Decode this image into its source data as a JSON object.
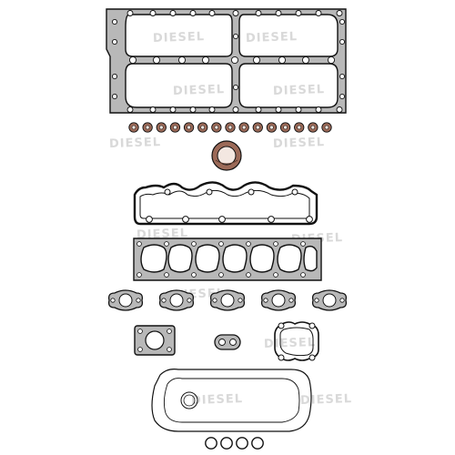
{
  "image": {
    "subject": "head gasket set",
    "colors": {
      "background": "#ffffff",
      "line": "#111111",
      "gasket_fill": "#b8b8b8",
      "seal_fill": "#9c6a58",
      "seal_center": "#f3e7e1",
      "watermark": "#d9d9d9"
    }
  },
  "watermark": {
    "text": "DIESEL"
  },
  "parts": {
    "valve_stem_seal_count": 15,
    "heat_shield_gasket_count": 5,
    "o_ring_count": 4
  }
}
